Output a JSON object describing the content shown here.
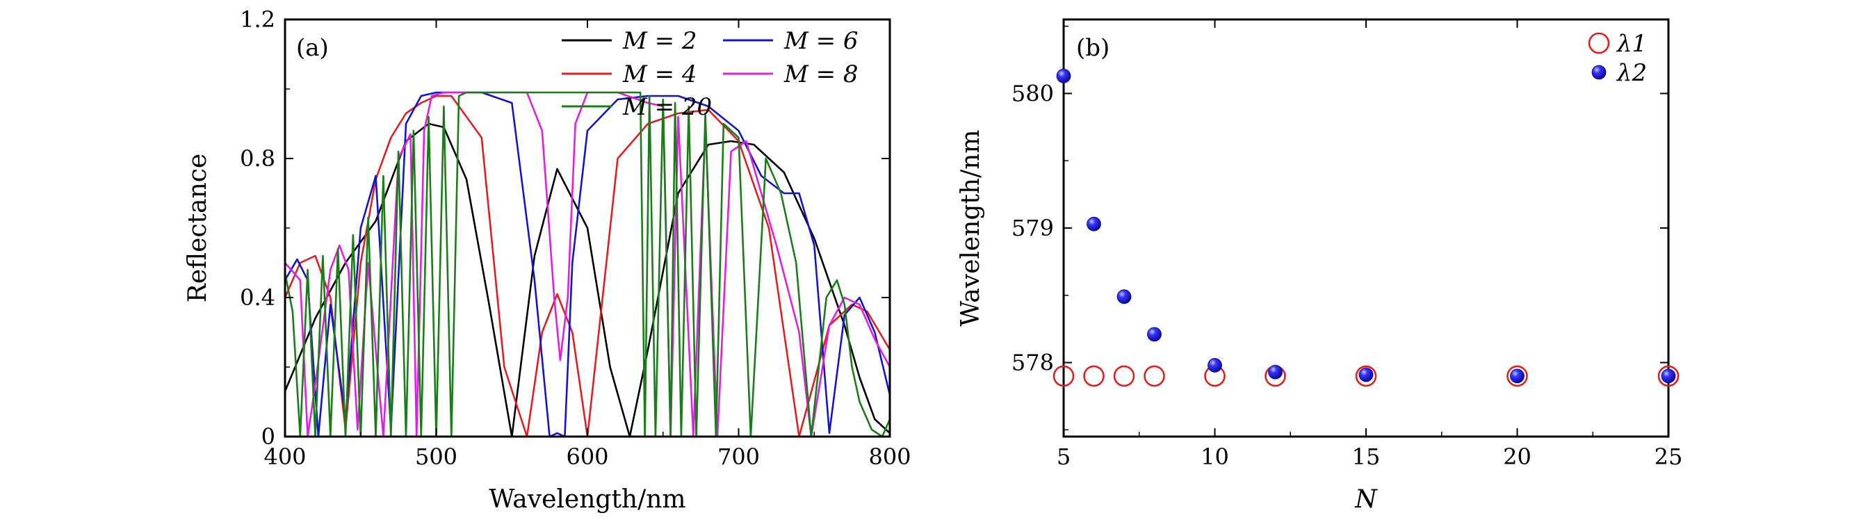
{
  "chart_data": [
    {
      "type": "line",
      "panel_label": "(a)",
      "xlabel": "Wavelength/nm",
      "ylabel": "Reflectance",
      "xlim": [
        400,
        800
      ],
      "ylim": [
        0,
        1.2
      ],
      "xticks": [
        400,
        500,
        600,
        700,
        800
      ],
      "xtick_labels": [
        "400",
        "500",
        "600",
        "700",
        "800"
      ],
      "yticks": [
        0,
        0.4,
        0.8,
        1.2
      ],
      "ytick_labels": [
        "0",
        "0.4",
        "0.8",
        "1.2"
      ],
      "legend_position": "top-right",
      "legend": [
        "M = 2",
        "M = 4",
        "M = 6",
        "M = 8",
        "M = 20"
      ],
      "series": [
        {
          "name": "M = 2",
          "color": "#000000",
          "x": [
            400,
            420,
            440,
            460,
            480,
            495,
            505,
            520,
            535,
            550,
            565,
            580,
            600,
            615,
            628,
            640,
            660,
            680,
            695,
            710,
            730,
            750,
            770,
            780,
            790,
            800
          ],
          "y": [
            0.13,
            0.34,
            0.5,
            0.62,
            0.85,
            0.9,
            0.89,
            0.74,
            0.38,
            0.0,
            0.52,
            0.77,
            0.6,
            0.2,
            0.0,
            0.25,
            0.7,
            0.84,
            0.85,
            0.84,
            0.76,
            0.57,
            0.32,
            0.17,
            0.05,
            0.01
          ]
        },
        {
          "name": "M = 4",
          "color": "#e02020",
          "x": [
            400,
            410,
            420,
            430,
            440,
            450,
            460,
            470,
            480,
            490,
            500,
            510,
            530,
            545,
            560,
            570,
            580,
            590,
            600,
            610,
            620,
            640,
            660,
            680,
            700,
            720,
            740,
            760,
            775,
            785,
            800
          ],
          "y": [
            0.4,
            0.5,
            0.52,
            0.4,
            0.02,
            0.5,
            0.74,
            0.86,
            0.93,
            0.96,
            0.98,
            0.98,
            0.86,
            0.2,
            0.0,
            0.3,
            0.41,
            0.3,
            0.0,
            0.4,
            0.8,
            0.9,
            0.93,
            0.94,
            0.85,
            0.6,
            0.0,
            0.32,
            0.38,
            0.36,
            0.25
          ]
        },
        {
          "name": "M = 6",
          "color": "#1515c8",
          "x": [
            400,
            408,
            415,
            422,
            430,
            440,
            450,
            460,
            470,
            480,
            490,
            500,
            510,
            530,
            550,
            565,
            575,
            580,
            585,
            590,
            600,
            620,
            640,
            660,
            680,
            700,
            715,
            730,
            740,
            750,
            760,
            770,
            780,
            790,
            800
          ],
          "y": [
            0.45,
            0.51,
            0.45,
            0.0,
            0.38,
            0.05,
            0.6,
            0.75,
            0.02,
            0.9,
            0.98,
            0.99,
            0.99,
            0.99,
            0.96,
            0.45,
            0.0,
            0.01,
            0.0,
            0.5,
            0.88,
            0.97,
            0.98,
            0.98,
            0.95,
            0.88,
            0.75,
            0.7,
            0.7,
            0.55,
            0.01,
            0.35,
            0.4,
            0.3,
            0.12
          ]
        },
        {
          "name": "M = 8",
          "color": "#e020e0",
          "x": [
            400,
            410,
            415,
            420,
            430,
            436,
            442,
            448,
            455,
            465,
            475,
            483,
            487,
            492,
            497,
            505,
            520,
            545,
            560,
            570,
            578,
            582,
            587,
            592,
            600,
            620,
            640,
            650,
            655,
            660,
            670,
            678,
            686,
            695,
            705,
            715,
            725,
            740,
            748,
            760,
            770,
            780,
            790,
            800
          ],
          "y": [
            0.5,
            0.45,
            0.0,
            0.15,
            0.48,
            0.55,
            0.48,
            0.02,
            0.5,
            0.0,
            0.8,
            0.87,
            0.0,
            0.88,
            0.98,
            0.99,
            0.99,
            0.99,
            0.99,
            0.88,
            0.4,
            0.22,
            0.4,
            0.9,
            0.99,
            0.99,
            0.96,
            0.95,
            0.0,
            0.92,
            0.0,
            0.9,
            0.0,
            0.82,
            0.85,
            0.7,
            0.55,
            0.3,
            0.0,
            0.32,
            0.4,
            0.38,
            0.28,
            0.2
          ]
        },
        {
          "name": "M = 20",
          "color": "#1a7d1a",
          "x": [
            400,
            405,
            410,
            415,
            420,
            425,
            430,
            435,
            440,
            445,
            450,
            455,
            460,
            465,
            470,
            475,
            480,
            485,
            490,
            495,
            500,
            505,
            510,
            515,
            520,
            540,
            560,
            580,
            600,
            620,
            635,
            638,
            641,
            645,
            650,
            655,
            658,
            662,
            667,
            672,
            678,
            685,
            690,
            700,
            708,
            718,
            728,
            738,
            748,
            758,
            765,
            770,
            775,
            780,
            788,
            795,
            800
          ],
          "y": [
            0.47,
            0.36,
            0.0,
            0.48,
            0.0,
            0.52,
            0.0,
            0.54,
            0.0,
            0.58,
            0.0,
            0.63,
            0.0,
            0.75,
            0.0,
            0.82,
            0.0,
            0.88,
            0.0,
            0.92,
            0.0,
            0.95,
            0.0,
            0.98,
            0.99,
            0.99,
            0.99,
            0.99,
            0.99,
            0.99,
            0.99,
            0.0,
            0.98,
            0.0,
            0.97,
            0.0,
            0.96,
            0.0,
            0.95,
            0.0,
            0.93,
            0.0,
            0.9,
            0.86,
            0.0,
            0.8,
            0.7,
            0.5,
            0.0,
            0.4,
            0.45,
            0.38,
            0.2,
            0.1,
            0.02,
            0.0,
            0.05
          ]
        }
      ]
    },
    {
      "type": "scatter",
      "panel_label": "(b)",
      "xlabel": "N",
      "ylabel": "Wavelength/nm",
      "xlim": [
        5,
        25
      ],
      "ylim": [
        577.45,
        580.55
      ],
      "xticks": [
        5,
        10,
        15,
        20,
        25
      ],
      "xtick_labels": [
        "5",
        "10",
        "15",
        "20",
        "25"
      ],
      "yticks": [
        578,
        579,
        580
      ],
      "ytick_labels": [
        "578",
        "579",
        "580"
      ],
      "legend_position": "top-right",
      "series": [
        {
          "name": "λ1",
          "marker": "open-circle",
          "color": "#e02020",
          "x": [
            5,
            6,
            7,
            8,
            10,
            12,
            15,
            20,
            25
          ],
          "y": [
            577.9,
            577.9,
            577.9,
            577.9,
            577.9,
            577.9,
            577.9,
            577.9,
            577.9
          ]
        },
        {
          "name": "λ2",
          "marker": "filled-sphere",
          "color": "#1a1af0",
          "x": [
            5,
            6,
            7,
            8,
            10,
            12,
            15,
            20,
            25
          ],
          "y": [
            580.13,
            579.03,
            578.49,
            578.21,
            577.98,
            577.93,
            577.91,
            577.9,
            577.9
          ]
        }
      ]
    }
  ]
}
